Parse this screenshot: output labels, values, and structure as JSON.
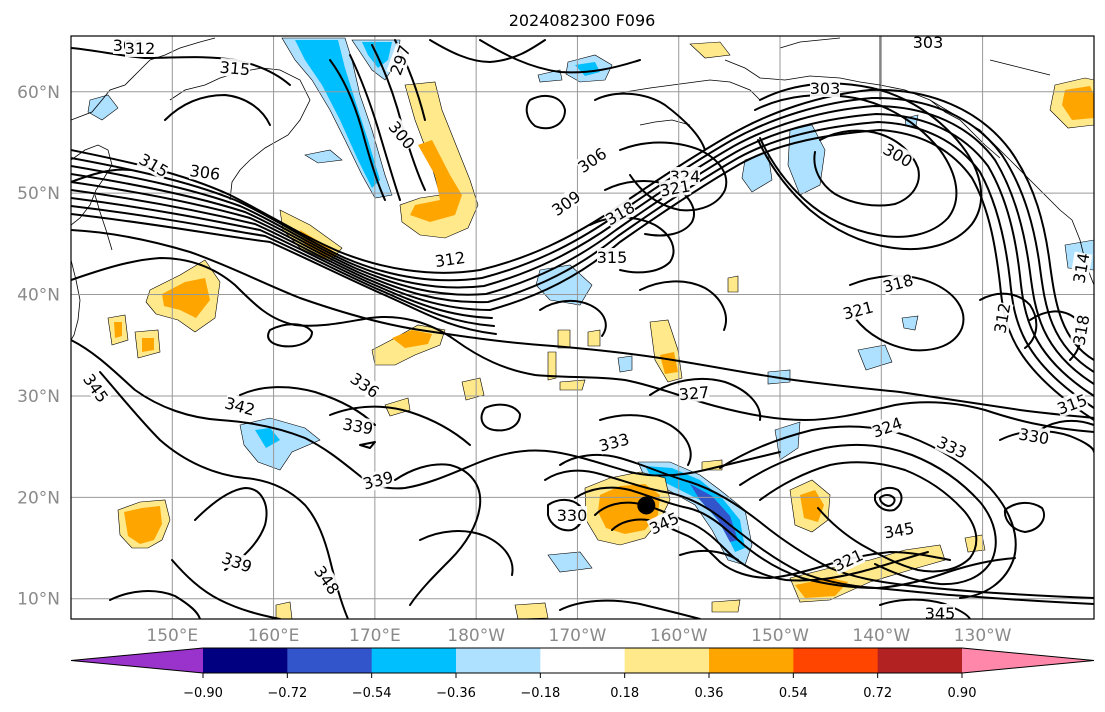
{
  "title": "2024082300 F096",
  "map": {
    "lat_ticks": [
      "60°N",
      "50°N",
      "40°N",
      "30°N",
      "20°N",
      "10°N"
    ],
    "lon_ticks": [
      "150°E",
      "160°E",
      "170°E",
      "180°W",
      "170°W",
      "160°W",
      "150°W",
      "140°W",
      "130°W"
    ],
    "contour_labels": [
      {
        "text": "309",
        "rot": 0
      },
      {
        "text": "312",
        "rot": 0
      },
      {
        "text": "315",
        "rot": 5
      },
      {
        "text": "297",
        "rot": -70
      },
      {
        "text": "303",
        "rot": 0
      },
      {
        "text": "303",
        "rot": 0
      },
      {
        "text": "300",
        "rot": 50
      },
      {
        "text": "306",
        "rot": -35
      },
      {
        "text": "324",
        "rot": 0
      },
      {
        "text": "321",
        "rot": -10
      },
      {
        "text": "300",
        "rot": 30
      },
      {
        "text": "315",
        "rot": 30
      },
      {
        "text": "306",
        "rot": 8
      },
      {
        "text": "309",
        "rot": -35
      },
      {
        "text": "318",
        "rot": -30
      },
      {
        "text": "312",
        "rot": -8
      },
      {
        "text": "315",
        "rot": 0
      },
      {
        "text": "318",
        "rot": -15
      },
      {
        "text": "321",
        "rot": -15
      },
      {
        "text": "312",
        "rot": -80
      },
      {
        "text": "314",
        "rot": -80
      },
      {
        "text": "318",
        "rot": -80
      },
      {
        "text": "345",
        "rot": 55
      },
      {
        "text": "336",
        "rot": 35
      },
      {
        "text": "342",
        "rot": 15
      },
      {
        "text": "339",
        "rot": 10
      },
      {
        "text": "327",
        "rot": -5
      },
      {
        "text": "333",
        "rot": -15
      },
      {
        "text": "324",
        "rot": -20
      },
      {
        "text": "333",
        "rot": 25
      },
      {
        "text": "330",
        "rot": 10
      },
      {
        "text": "315",
        "rot": -20
      },
      {
        "text": "339",
        "rot": -15
      },
      {
        "text": "330",
        "rot": 0
      },
      {
        "text": "345",
        "rot": -25
      },
      {
        "text": "345",
        "rot": -10
      },
      {
        "text": "321",
        "rot": -25
      },
      {
        "text": "339",
        "rot": 20
      },
      {
        "text": "348",
        "rot": 55
      },
      {
        "text": "345",
        "rot": 0
      }
    ],
    "storm_marker": {
      "lat": 19.2,
      "lon": -163.2
    }
  },
  "colorbar": {
    "colors": [
      "#9933cc",
      "#000080",
      "#3355cc",
      "#00bfff",
      "#aee0ff",
      "#ffffff",
      "#ffe98a",
      "#ffa500",
      "#ff4500",
      "#b22222",
      "#ff88aa"
    ],
    "tick_labels": [
      "−0.90",
      "−0.72",
      "−0.54",
      "−0.36",
      "−0.18",
      "0.18",
      "0.36",
      "0.54",
      "0.72",
      "0.90"
    ]
  }
}
